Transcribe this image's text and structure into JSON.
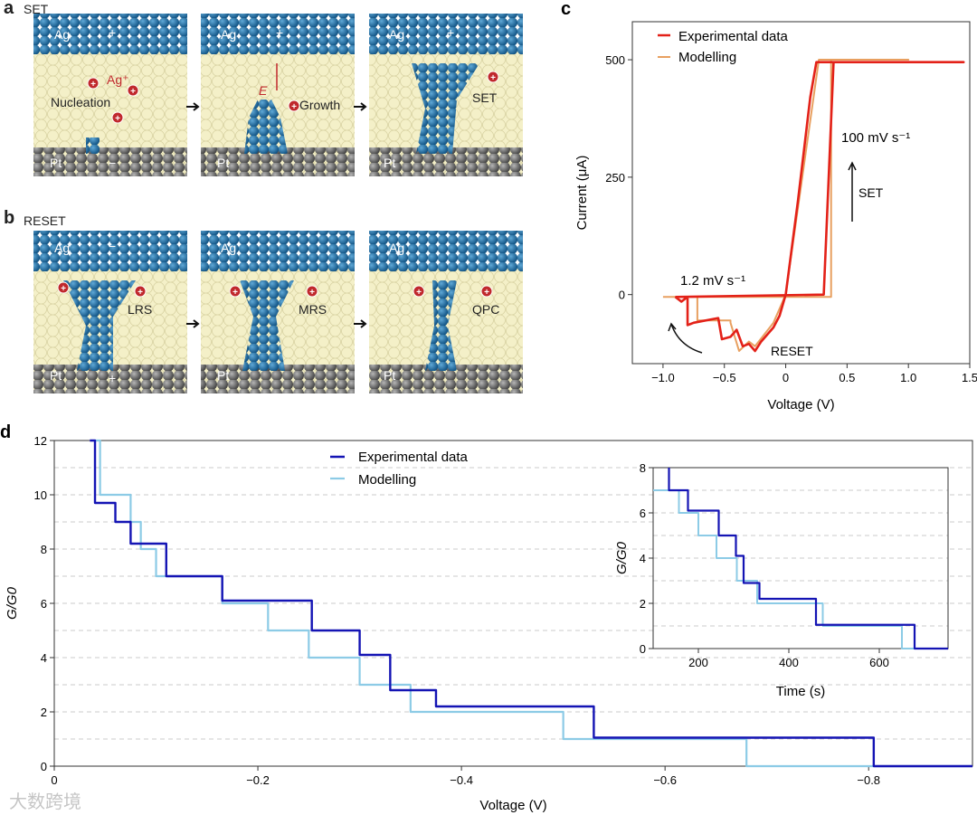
{
  "panel_a": {
    "letter": "a",
    "title": "SET",
    "labels": {
      "ag": "Ag",
      "plus": "+",
      "minus": "−",
      "pt": "Pt",
      "ag_ion": "Ag⁺",
      "nucleation": "Nucleation",
      "field": "E",
      "growth": "Growth",
      "set": "SET"
    }
  },
  "panel_b": {
    "letter": "b",
    "title": "RESET",
    "labels": {
      "ag": "Ag",
      "minus": "−",
      "plus": "+",
      "pt": "Pt",
      "lrs": "LRS",
      "mrs": "MRS",
      "qpc": "QPC"
    }
  },
  "colors": {
    "ag": "#1a6aa0",
    "matrix": "#f3efc4",
    "pt": "#6e6e6e",
    "ion": "#c0282c",
    "exp_c": "#e32118",
    "mod_c": "#e8a060",
    "exp_d": "#1414b4",
    "mod_d": "#8ccbe6"
  },
  "watermark": "大数跨境",
  "chart_data": [
    {
      "id": "c",
      "letter": "c",
      "type": "line",
      "xlabel": "Voltage (V)",
      "ylabel": "Current (μA)",
      "xlim": [
        -1.25,
        1.5
      ],
      "ylim": [
        -147,
        581
      ],
      "xticks": [
        -1.0,
        -0.5,
        0,
        0.5,
        1.0,
        1.5
      ],
      "xtick_labels": [
        "−1.0",
        "−0.5",
        "0",
        "0.5",
        "1.0",
        "1.5"
      ],
      "yticks": [
        0,
        250,
        500
      ],
      "ytick_labels": [
        "0",
        "250",
        "500"
      ],
      "legend": [
        "Experimental data",
        "Modelling"
      ],
      "legend_position": "top-left",
      "annotations": {
        "fast": "100 mV s⁻¹",
        "slow": "1.2 mV s⁻¹",
        "set": "SET",
        "reset": "RESET"
      },
      "series": [
        {
          "name": "Experimental data",
          "x": [
            -0.9,
            0.31,
            0.39,
            1.45,
            0.25,
            0.2,
            0.1,
            0,
            -0.05,
            -0.1,
            -0.2,
            -0.25,
            -0.3,
            -0.35,
            -0.4,
            -0.45,
            -0.52,
            -0.55,
            -0.75,
            -0.8,
            -0.8,
            -0.85,
            -0.9
          ],
          "y": [
            -5,
            0,
            495,
            495,
            495,
            420,
            200,
            0,
            -45,
            -70,
            -100,
            -120,
            -105,
            -110,
            -75,
            -90,
            -95,
            -50,
            -60,
            -65,
            -5,
            -15,
            -5
          ]
        },
        {
          "name": "Modelling",
          "x": [
            -1.0,
            0.37,
            0.37,
            1.0,
            0.27,
            0,
            -0.1,
            -0.25,
            -0.3,
            -0.38,
            -0.45,
            -0.45,
            -0.72,
            -0.72,
            -1.0
          ],
          "y": [
            -5,
            -5,
            500,
            500,
            500,
            0,
            -60,
            -110,
            -100,
            -120,
            -60,
            -55,
            -55,
            -5,
            -5
          ]
        }
      ]
    },
    {
      "id": "d",
      "letter": "d",
      "type": "line",
      "xlabel": "Voltage (V)",
      "ylabel": "G/G0",
      "xlim": [
        0,
        -0.902
      ],
      "ylim": [
        0,
        12
      ],
      "xticks": [
        0,
        -0.2,
        -0.4,
        -0.6,
        -0.8
      ],
      "xtick_labels": [
        "0",
        "−0.2",
        "−0.4",
        "−0.6",
        "−0.8"
      ],
      "yticks": [
        0,
        2,
        4,
        6,
        8,
        10,
        12
      ],
      "ytick_labels": [
        "0",
        "2",
        "4",
        "6",
        "8",
        "10",
        "12"
      ],
      "legend": [
        "Experimental data",
        "Modelling"
      ],
      "legend_position": "top-center",
      "series": [
        {
          "name": "Experimental data",
          "steps": [
            [
              -0.035,
              12
            ],
            [
              -0.04,
              9.7
            ],
            [
              -0.06,
              9.0
            ],
            [
              -0.075,
              8.2
            ],
            [
              -0.11,
              7.0
            ],
            [
              -0.165,
              6.1
            ],
            [
              -0.253,
              5.0
            ],
            [
              -0.3,
              4.1
            ],
            [
              -0.33,
              2.8
            ],
            [
              -0.375,
              2.2
            ],
            [
              -0.53,
              1.05
            ],
            [
              -0.805,
              0
            ],
            [
              -0.902,
              0
            ]
          ]
        },
        {
          "name": "Modelling",
          "steps": [
            [
              -0.04,
              12
            ],
            [
              -0.045,
              10
            ],
            [
              -0.075,
              9
            ],
            [
              -0.085,
              8
            ],
            [
              -0.1,
              7
            ],
            [
              -0.165,
              6
            ],
            [
              -0.21,
              5
            ],
            [
              -0.25,
              4
            ],
            [
              -0.3,
              3
            ],
            [
              -0.35,
              2
            ],
            [
              -0.5,
              1
            ],
            [
              -0.68,
              0
            ],
            [
              -0.902,
              0
            ]
          ]
        }
      ]
    },
    {
      "id": "d_inset",
      "type": "line",
      "xlabel": "Time (s)",
      "ylabel": "G/G0",
      "xlim": [
        100,
        752
      ],
      "ylim": [
        0,
        8
      ],
      "xticks": [
        200,
        400,
        600
      ],
      "xtick_labels": [
        "200",
        "400",
        "600"
      ],
      "yticks": [
        0,
        2,
        4,
        6,
        8
      ],
      "ytick_labels": [
        "0",
        "2",
        "4",
        "6",
        "8"
      ],
      "series": [
        {
          "name": "Experimental data",
          "steps": [
            [
              135,
              8
            ],
            [
              135,
              7
            ],
            [
              177,
              6.1
            ],
            [
              245,
              5
            ],
            [
              283,
              4.1
            ],
            [
              300,
              2.9
            ],
            [
              335,
              2.2
            ],
            [
              460,
              1.05
            ],
            [
              678,
              0
            ],
            [
              752,
              0
            ]
          ]
        },
        {
          "name": "Modelling",
          "steps": [
            [
              100,
              7
            ],
            [
              157,
              6
            ],
            [
              200,
              5
            ],
            [
              240,
              4
            ],
            [
              285,
              3
            ],
            [
              330,
              2
            ],
            [
              475,
              1
            ],
            [
              650,
              0
            ],
            [
              752,
              0
            ]
          ]
        }
      ]
    }
  ]
}
